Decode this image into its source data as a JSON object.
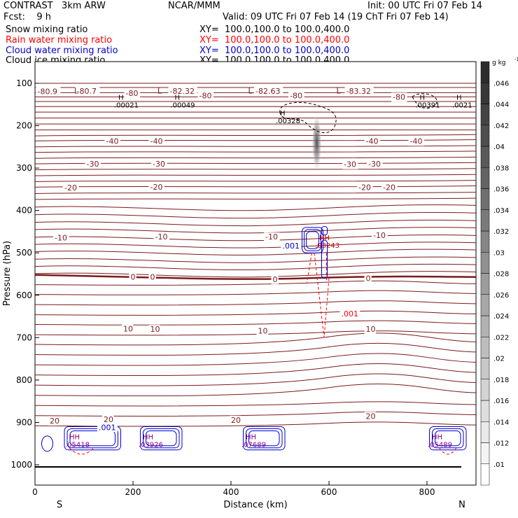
{
  "header": {
    "model": "CONTRAST   3km ARW",
    "org": "NCAR/MMM",
    "init": "Init: 00 UTC Fri 07 Feb 14",
    "fcst": "Fcst:    9 h",
    "valid": "Valid: 09 UTC Fri 07 Feb 14 (19 ChT Fri 07 Feb 14)",
    "fields": [
      {
        "name": "Snow mixing ratio",
        "xy": "XY=  100.0,100.0 to 100.0,400.0",
        "color": "#000000"
      },
      {
        "name": "Rain water mixing ratio",
        "xy": "XY=  100.0,100.0 to 100.0,400.0",
        "color": "#ff0000"
      },
      {
        "name": "Cloud water mixing ratio",
        "xy": "XY=  100.0,100.0 to 100.0,400.0",
        "color": "#0000cc"
      },
      {
        "name": "Cloud ice mixing ratio",
        "xy": "XY=  100.0,100.0 to 100.0,400.0",
        "color": "#000000"
      }
    ]
  },
  "chart_data": {
    "type": "contour",
    "xlabel": "Distance (km)",
    "ylabel": "Pressure (hPa)",
    "xlim": [
      0,
      900
    ],
    "ylim": [
      1050,
      50
    ],
    "x_ticks": [
      0,
      200,
      400,
      600,
      800
    ],
    "x_tick_labels": [
      "0",
      "200",
      "400",
      "600",
      "800"
    ],
    "y_ticks": [
      100,
      200,
      300,
      400,
      500,
      600,
      700,
      800,
      900,
      1000
    ],
    "y_tick_labels": [
      "100",
      "200",
      "300",
      "400",
      "500",
      "600",
      "700",
      "800",
      "900",
      "1000"
    ],
    "edge_labels": {
      "left": "S",
      "right": "N"
    },
    "temperature_labels": [
      {
        "text": "-80.9",
        "x": 5,
        "p": 119
      },
      {
        "text": "-80.7",
        "x": 85,
        "p": 118
      },
      {
        "text": "-80",
        "x": 185,
        "p": 123
      },
      {
        "text": "-82.32",
        "x": 275,
        "p": 118
      },
      {
        "text": "-80",
        "x": 335,
        "p": 129
      },
      {
        "text": "-82.63",
        "x": 450,
        "p": 118
      },
      {
        "text": "-80",
        "x": 520,
        "p": 129
      },
      {
        "text": "-83.32",
        "x": 635,
        "p": 118
      },
      {
        "text": "-80",
        "x": 730,
        "p": 132
      },
      {
        "text": "-40",
        "x": 145,
        "p": 236
      },
      {
        "text": "-40",
        "x": 235,
        "p": 236
      },
      {
        "text": "-40",
        "x": 675,
        "p": 236
      },
      {
        "text": "-40",
        "x": 765,
        "p": 236
      },
      {
        "text": "-30",
        "x": 105,
        "p": 290
      },
      {
        "text": "-30",
        "x": 240,
        "p": 290
      },
      {
        "text": "-30",
        "x": 630,
        "p": 291
      },
      {
        "text": "-30",
        "x": 680,
        "p": 290
      },
      {
        "text": "-20",
        "x": 60,
        "p": 346
      },
      {
        "text": "-20",
        "x": 235,
        "p": 344
      },
      {
        "text": "-20",
        "x": 660,
        "p": 345
      },
      {
        "text": "-20",
        "x": 710,
        "p": 345
      },
      {
        "text": "-10",
        "x": 40,
        "p": 464
      },
      {
        "text": "-10",
        "x": 245,
        "p": 462
      },
      {
        "text": "-10",
        "x": 470,
        "p": 462
      },
      {
        "text": "-10",
        "x": 690,
        "p": 458
      },
      {
        "text": "0",
        "x": 195,
        "p": 557
      },
      {
        "text": "0",
        "x": 235,
        "p": 557
      },
      {
        "text": "0",
        "x": 485,
        "p": 562
      },
      {
        "text": "0",
        "x": 675,
        "p": 560
      },
      {
        "text": "10",
        "x": 180,
        "p": 679
      },
      {
        "text": "10",
        "x": 235,
        "p": 680
      },
      {
        "text": "10",
        "x": 455,
        "p": 684
      },
      {
        "text": "10",
        "x": 675,
        "p": 680
      },
      {
        "text": "20",
        "x": 30,
        "p": 896
      },
      {
        "text": "20",
        "x": 140,
        "p": 893
      },
      {
        "text": "20",
        "x": 400,
        "p": 894
      },
      {
        "text": "20",
        "x": 675,
        "p": 885
      }
    ],
    "maxima_labels": [
      {
        "text": "H",
        "x": 170,
        "p": 139,
        "value": ".00021",
        "color": "#000000"
      },
      {
        "text": "H",
        "x": 285,
        "p": 139,
        "value": ".00049",
        "color": "#000000"
      },
      {
        "text": "H",
        "x": 500,
        "p": 176,
        "value": ".00328",
        "color": "#000000"
      },
      {
        "text": "H",
        "x": 785,
        "p": 139,
        "value": ".00391",
        "color": "#000000"
      },
      {
        "text": "H",
        "x": 860,
        "p": 139,
        "value": ".0021",
        "color": "#000000"
      },
      {
        "text": "HH",
        "x": 580,
        "p": 470,
        "value": ".03243",
        "color": "#cc0000"
      },
      {
        "text": "HH",
        "x": 70,
        "p": 940,
        "value": ".05418",
        "color": "#880088"
      },
      {
        "text": "HH",
        "x": 220,
        "p": 940,
        "value": ".03926",
        "color": "#880088"
      },
      {
        "text": "HH",
        "x": 430,
        "p": 940,
        "value": ".07689",
        "color": "#880088"
      },
      {
        "text": "HH",
        "x": 810,
        "p": 940,
        "value": ".05489",
        "color": "#880088"
      }
    ],
    "local_min_labels": [
      {
        "text": "L",
        "x": 80,
        "p": 88
      },
      {
        "text": "L",
        "x": 250,
        "p": 88
      },
      {
        "text": "L",
        "x": 435,
        "p": 88
      },
      {
        "text": "L",
        "x": 615,
        "p": 88
      }
    ],
    "contour_value_labels": [
      {
        "text": ".001",
        "x": 505,
        "p": 490,
        "color": "#0000cc"
      },
      {
        "text": ".001",
        "x": 625,
        "p": 650,
        "color": "#ff0000"
      },
      {
        "text": ".001",
        "x": 130,
        "p": 918,
        "color": "#0000cc"
      }
    ],
    "colorbar": {
      "unit": "g kg",
      "unit_exponent": "-1",
      "levels": [
        0.01,
        0.012,
        0.014,
        0.016,
        0.018,
        0.02,
        0.022,
        0.024,
        0.026,
        0.028,
        0.03,
        0.032,
        0.034,
        0.036,
        0.038,
        0.04,
        0.042,
        0.044,
        0.046
      ],
      "labels": [
        ".01",
        ".012",
        ".014",
        ".016",
        ".018",
        ".02",
        ".022",
        ".024",
        ".026",
        ".028",
        ".03",
        ".032",
        ".034",
        ".036",
        ".038",
        ".04",
        ".042",
        ".044",
        ".046"
      ]
    },
    "colors": {
      "temperature": "#7b1a1a",
      "cloud_water": "#0000cc",
      "rain_water": "#ff0000",
      "cloud_ice": "#000000"
    }
  }
}
